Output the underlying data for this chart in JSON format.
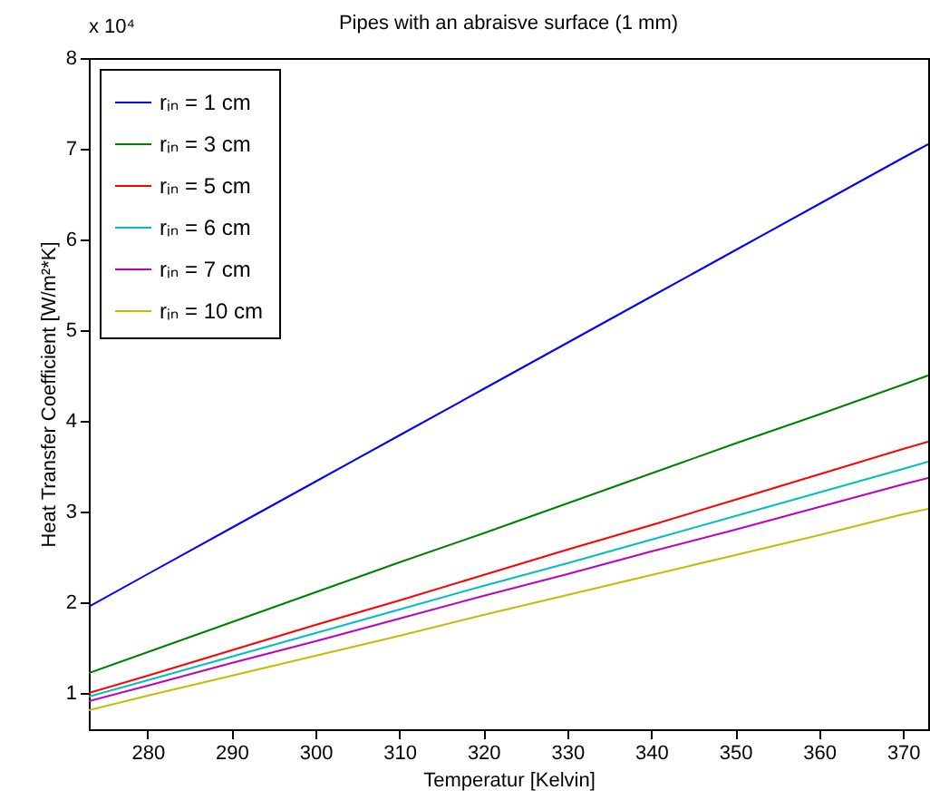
{
  "chart_data": {
    "type": "line",
    "title": "Pipes with an abraisve surface (1 mm)",
    "xlabel": "Temperatur [Kelvin]",
    "ylabel": "Heat Transfer Coefficient [W/m²*K]",
    "annotations": [
      "x 10⁴"
    ],
    "x": [
      273,
      280,
      290,
      300,
      310,
      320,
      330,
      340,
      350,
      360,
      370,
      373
    ],
    "series": [
      {
        "name": "rᵢₙ = 1 cm",
        "color": "#0000ff",
        "values": [
          1.95,
          2.31,
          2.82,
          3.33,
          3.84,
          4.35,
          4.86,
          5.37,
          5.88,
          6.39,
          6.9,
          7.05
        ]
      },
      {
        "name": "rᵢₙ = 3 cm",
        "color": "#008000",
        "values": [
          1.22,
          1.45,
          1.78,
          2.11,
          2.44,
          2.76,
          3.09,
          3.42,
          3.75,
          4.07,
          4.4,
          4.5
        ]
      },
      {
        "name": "rᵢₙ = 5 cm",
        "color": "#ff0000",
        "values": [
          1.0,
          1.19,
          1.47,
          1.75,
          2.02,
          2.3,
          2.58,
          2.85,
          3.13,
          3.41,
          3.69,
          3.77
        ]
      },
      {
        "name": "rᵢₙ = 6 cm",
        "color": "#00bfbf",
        "values": [
          0.96,
          1.14,
          1.4,
          1.66,
          1.92,
          2.18,
          2.43,
          2.69,
          2.95,
          3.21,
          3.47,
          3.55
        ]
      },
      {
        "name": "rᵢₙ = 7 cm",
        "color": "#bf00bf",
        "values": [
          0.91,
          1.08,
          1.33,
          1.57,
          1.82,
          2.07,
          2.31,
          2.56,
          2.8,
          3.05,
          3.3,
          3.37
        ]
      },
      {
        "name": "rᵢₙ = 10 cm",
        "color": "#bfbf00",
        "values": [
          0.81,
          0.97,
          1.19,
          1.41,
          1.63,
          1.86,
          2.08,
          2.3,
          2.52,
          2.74,
          2.97,
          3.03
        ]
      }
    ],
    "xlim": [
      273,
      373
    ],
    "xticks": [
      280,
      290,
      300,
      310,
      320,
      330,
      340,
      350,
      360,
      370
    ],
    "ylim": [
      0.6,
      8
    ],
    "yticks": [
      1,
      2,
      3,
      4,
      5,
      6,
      7,
      8
    ],
    "grid": false,
    "legend": "top left",
    "marker": "none",
    "line_style": "solid"
  }
}
